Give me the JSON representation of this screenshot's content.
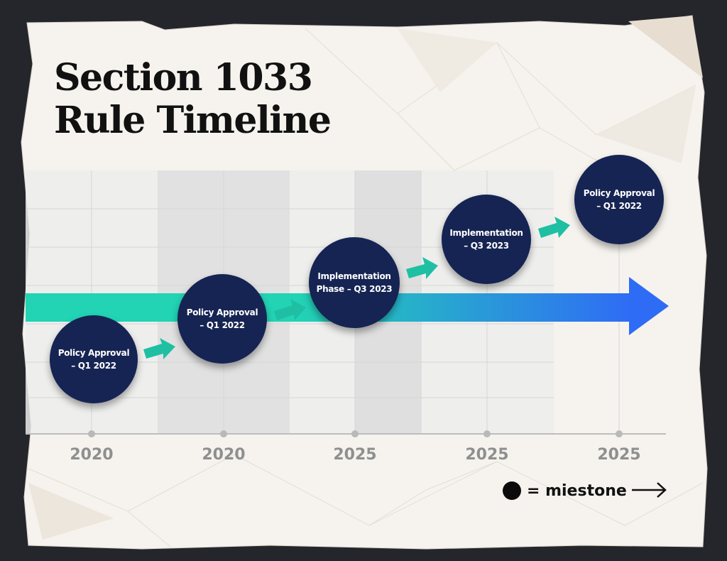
{
  "title": {
    "line1": "Section 1033",
    "line2": "Rule Timeline"
  },
  "milestones": [
    {
      "label": "Policy Approval – Q1 2022"
    },
    {
      "label": "Policy Approval – Q1 2022"
    },
    {
      "label": "Implementation Phase – Q3 2023"
    },
    {
      "label": "Implementation – Q3 2023"
    },
    {
      "label": "Policy Approval – Q1 2022"
    }
  ],
  "axis": {
    "years": [
      "2020",
      "2020",
      "2025",
      "2025",
      "2025"
    ]
  },
  "legend": {
    "text": "= miestone"
  },
  "colors": {
    "milestone_fill": "#162453",
    "arrow_start": "#22d3b4",
    "arrow_end": "#2f6cf5",
    "step_arrow": "#1fbfa3",
    "axis_text": "#8f8f8f",
    "background": "#25262b",
    "paper": "#f6f3ee"
  }
}
